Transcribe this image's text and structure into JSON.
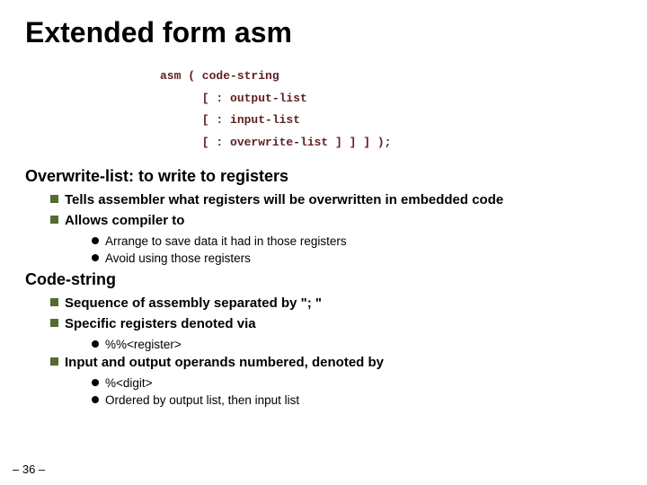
{
  "title": "Extended form asm",
  "code": {
    "line1": "asm ( code-string",
    "line2": "      [ : output-list",
    "line3": "      [ : input-list",
    "line4": "      [ : overwrite-list ] ] ] );"
  },
  "section1": {
    "heading": "Overwrite-list: to write to registers",
    "b1": "Tells assembler what registers will be overwritten in embedded code",
    "b2": "Allows compiler to",
    "s1": "Arrange to save data it had in those registers",
    "s2": "Avoid using those registers"
  },
  "section2": {
    "heading": "Code-string",
    "b1": "Sequence of assembly separated by \"; \"",
    "b2": "Specific registers denoted via",
    "s1": "%%<register>",
    "b3": "Input and output operands  numbered, denoted by",
    "s2": "%<digit>",
    "s3": "Ordered by output list, then input list"
  },
  "pageNumber": "– 36 –",
  "colors": {
    "title": "#000000",
    "code": "#5f1f1f",
    "squareBullet": "#556b2f",
    "roundBullet": "#000000",
    "background": "#ffffff"
  }
}
